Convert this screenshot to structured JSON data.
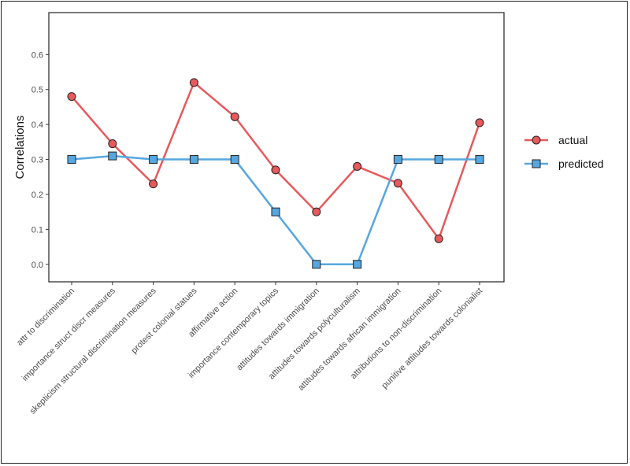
{
  "chart_data": {
    "type": "line",
    "title": "",
    "xlabel": "",
    "ylabel": "Correlations",
    "ylim": [
      -0.05,
      0.72
    ],
    "yticks": [
      0.0,
      0.1,
      0.2,
      0.3,
      0.4,
      0.5,
      0.6
    ],
    "ytick_labels": [
      "0.0",
      "0.1",
      "0.2",
      "0.3",
      "0.4",
      "0.5",
      "0.6"
    ],
    "grid": false,
    "legend_position": "right",
    "categories": [
      "attr to discrimination",
      "importance struct discr measures",
      "skepticism structural discrimination measures",
      "protest colonial statues",
      "affirmative action",
      "importance contemporary topics",
      "attitudes towards immigration",
      "attitudes towards polyculturalism",
      "attitudes towards african immigration",
      "attributions to non-discrimination",
      "punitive attitudes towards colonialist"
    ],
    "series": [
      {
        "name": "actual",
        "color": "#e8595c",
        "marker": "circle",
        "values": [
          0.48,
          0.345,
          0.23,
          0.52,
          0.422,
          0.27,
          0.15,
          0.28,
          0.232,
          0.073,
          0.405
        ]
      },
      {
        "name": "predicted",
        "color": "#56a7e0",
        "marker": "square",
        "values": [
          0.3,
          0.31,
          0.3,
          0.3,
          0.3,
          0.15,
          0.0,
          0.0,
          0.3,
          0.3,
          0.3
        ]
      }
    ]
  }
}
